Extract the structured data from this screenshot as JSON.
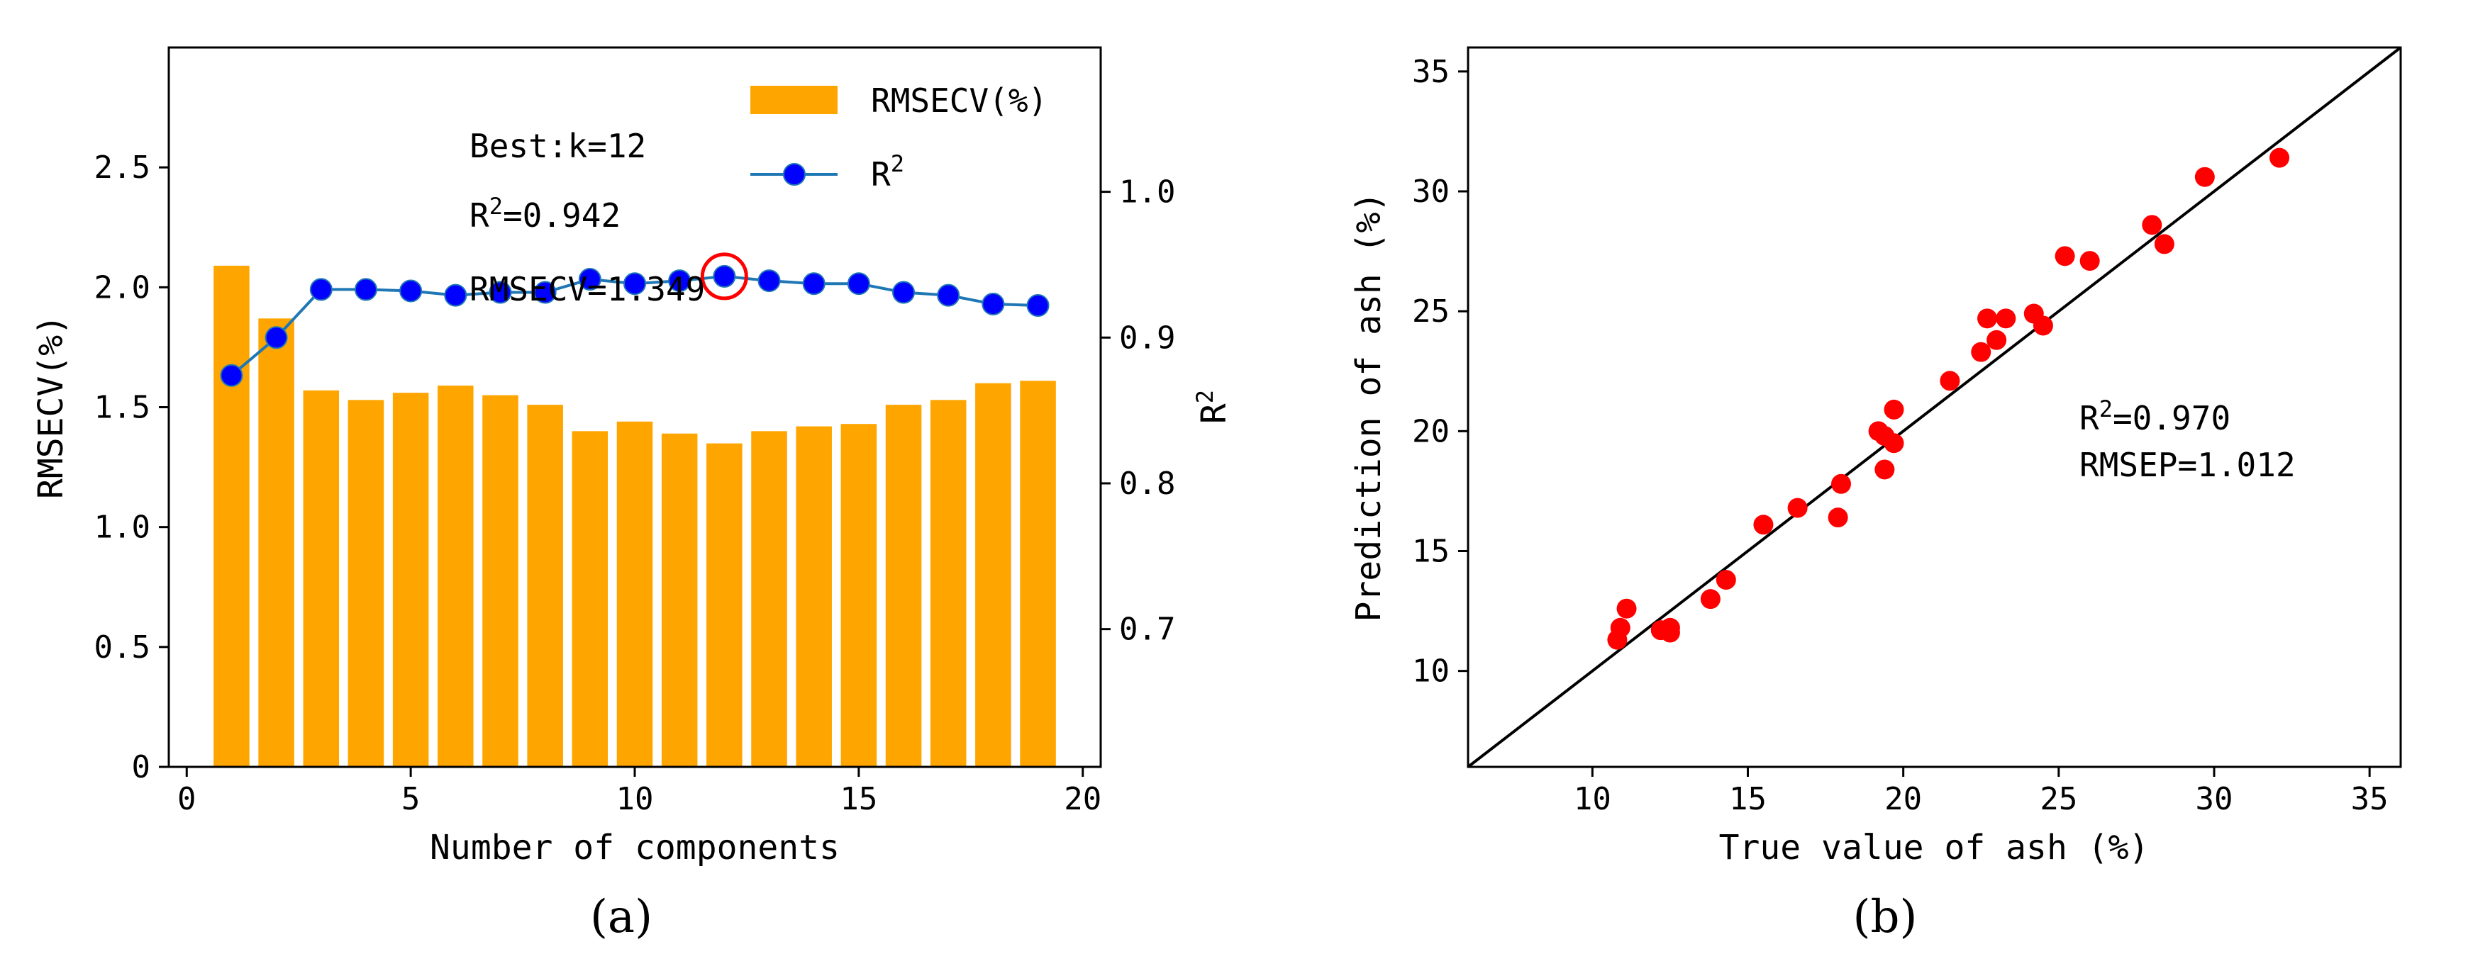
{
  "chart_data": [
    {
      "type": "bar",
      "panel_label": "(a)",
      "xlabel": "Number of components",
      "ylabel": "RMSECV(%)",
      "y2label": "R",
      "y2label_sup": "2",
      "xlim": [
        -0.4,
        20.4
      ],
      "ylim": [
        0,
        3.0
      ],
      "y2lim": [
        0.6055,
        1.099
      ],
      "xticks": [
        0,
        5,
        10,
        15,
        20
      ],
      "yticks": [
        0,
        0.5,
        1.0,
        1.5,
        2.0,
        2.5
      ],
      "y2ticks": [
        0.7,
        0.8,
        0.9,
        1.0
      ],
      "x": [
        1,
        2,
        3,
        4,
        5,
        6,
        7,
        8,
        9,
        10,
        11,
        12,
        13,
        14,
        15,
        16,
        17,
        18,
        19
      ],
      "series": [
        {
          "name": "RMSECV(%)",
          "axis": "left",
          "kind": "bar",
          "color": "#FFA500",
          "values": [
            2.09,
            1.87,
            1.57,
            1.53,
            1.56,
            1.59,
            1.55,
            1.51,
            1.4,
            1.44,
            1.39,
            1.349,
            1.4,
            1.42,
            1.43,
            1.51,
            1.53,
            1.6,
            1.61
          ]
        },
        {
          "name": "R",
          "name_sup": "2",
          "axis": "right",
          "kind": "line",
          "color": "#1F77B4",
          "marker_color": "#0000FF",
          "values": [
            0.874,
            0.9,
            0.933,
            0.933,
            0.932,
            0.929,
            0.931,
            0.931,
            0.94,
            0.937,
            0.939,
            0.942,
            0.939,
            0.937,
            0.937,
            0.931,
            0.929,
            0.923,
            0.922
          ]
        }
      ],
      "legend": {
        "position": "top-right",
        "items": [
          "RMSECV(%)",
          "R2"
        ]
      },
      "highlight": {
        "x": 12,
        "color": "#FF0000"
      },
      "annotations": [
        "Best:k=12",
        "R2=0.942",
        "RMSECV=1.349"
      ]
    },
    {
      "type": "scatter",
      "panel_label": "(b)",
      "xlabel": "True value of ash (%)",
      "ylabel": "Prediction of ash (%)",
      "xlim": [
        6.0,
        36.0
      ],
      "ylim": [
        6.0,
        36.0
      ],
      "xticks": [
        10,
        15,
        20,
        25,
        30,
        35
      ],
      "yticks": [
        10,
        15,
        20,
        25,
        30,
        35
      ],
      "point_color": "#FF0000",
      "line_color": "#000000",
      "points": [
        [
          10.8,
          11.3
        ],
        [
          10.9,
          11.8
        ],
        [
          11.1,
          12.6
        ],
        [
          12.2,
          11.7
        ],
        [
          12.5,
          11.6
        ],
        [
          12.5,
          11.8
        ],
        [
          13.8,
          13.0
        ],
        [
          14.3,
          13.8
        ],
        [
          15.5,
          16.1
        ],
        [
          16.6,
          16.8
        ],
        [
          17.9,
          16.4
        ],
        [
          18.0,
          17.8
        ],
        [
          19.2,
          20.0
        ],
        [
          19.4,
          18.4
        ],
        [
          19.4,
          19.8
        ],
        [
          19.7,
          19.5
        ],
        [
          19.7,
          20.9
        ],
        [
          21.5,
          22.1
        ],
        [
          22.5,
          23.3
        ],
        [
          22.7,
          24.7
        ],
        [
          23.0,
          23.8
        ],
        [
          23.3,
          24.7
        ],
        [
          24.2,
          24.9
        ],
        [
          24.5,
          24.4
        ],
        [
          25.2,
          27.3
        ],
        [
          26.0,
          27.1
        ],
        [
          28.0,
          28.6
        ],
        [
          28.4,
          27.8
        ],
        [
          29.7,
          30.6
        ],
        [
          32.1,
          31.4
        ]
      ],
      "annotations": [
        "R2=0.970",
        "RMSEP=1.012"
      ]
    }
  ]
}
